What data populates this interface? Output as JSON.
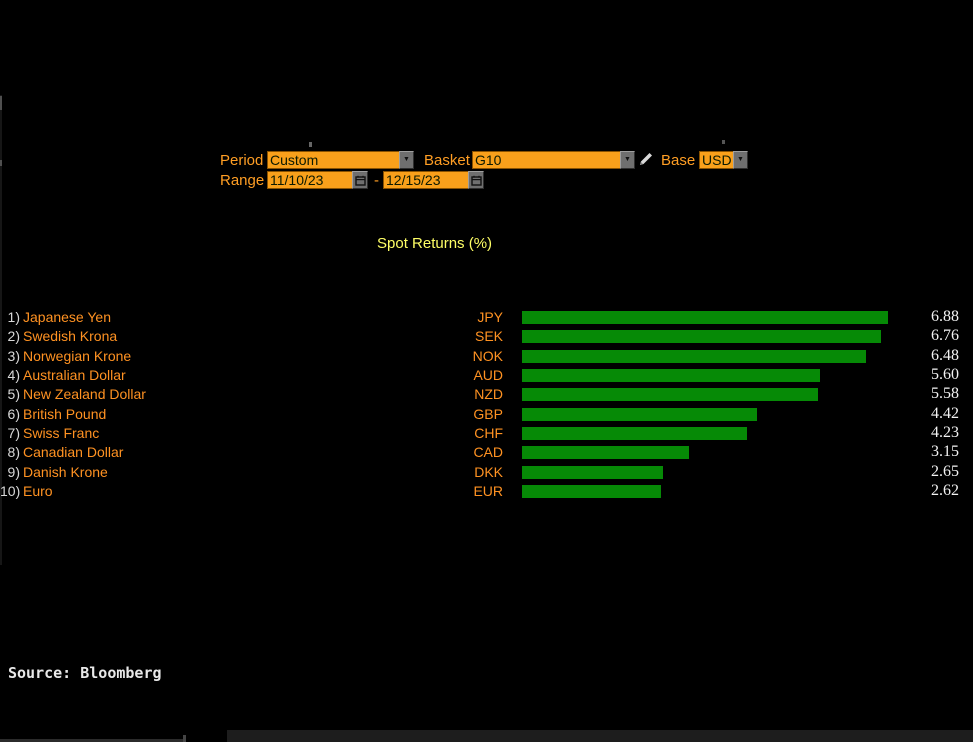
{
  "controls": {
    "period": {
      "label": "Period",
      "value": "Custom"
    },
    "basket": {
      "label": "Basket",
      "value": "G10"
    },
    "base": {
      "label": "Base",
      "value": "USD"
    },
    "range": {
      "label": "Range",
      "start": "11/10/23",
      "separator": "-",
      "end": "12/15/23"
    },
    "icons": {
      "dropdown_arrow_glyph": "▼",
      "pencil": "pencil-edit-icon",
      "calendar": "calendar-icon"
    }
  },
  "chart_data": {
    "type": "bar",
    "orientation": "horizontal",
    "title": "Spot Returns (%)",
    "ranks": [
      "1)",
      "2)",
      "3)",
      "4)",
      "5)",
      "6)",
      "7)",
      "8)",
      "9)",
      "10)"
    ],
    "categories": [
      "Japanese Yen",
      "Swedish Krona",
      "Norwegian Krone",
      "Australian Dollar",
      "New Zealand Dollar",
      "British Pound",
      "Swiss Franc",
      "Canadian Dollar",
      "Danish Krone",
      "Euro"
    ],
    "tickers": [
      "JPY",
      "SEK",
      "NOK",
      "AUD",
      "NZD",
      "GBP",
      "CHF",
      "CAD",
      "DKK",
      "EUR"
    ],
    "values": [
      6.88,
      6.76,
      6.48,
      5.6,
      5.58,
      4.42,
      4.23,
      3.15,
      2.65,
      2.62
    ],
    "value_labels": [
      "6.88",
      "6.76",
      "6.48",
      "5.60",
      "5.58",
      "4.42",
      "4.23",
      "3.15",
      "2.65",
      "2.62"
    ],
    "xlim": [
      0,
      8
    ],
    "grid": false,
    "legend": false,
    "bar_color": "#068a06",
    "value_color": "#f2f2f2",
    "category_color": "#ff9222",
    "title_color": "#ffff66"
  },
  "source": "Source: Bloomberg",
  "colors": {
    "background": "#000000",
    "accent_orange_field": "#f9a01b",
    "accent_orange_text": "#ff9e24",
    "bar_green": "#068a06"
  }
}
